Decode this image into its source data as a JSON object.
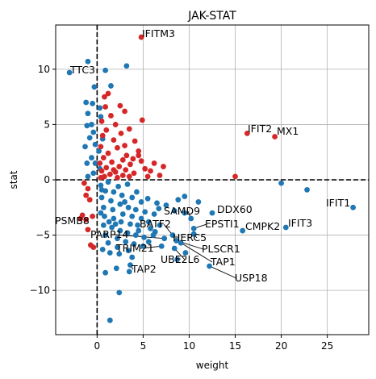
{
  "chart_data": {
    "type": "scatter",
    "title": "JAK-STAT",
    "xlabel": "weight",
    "ylabel": "stat",
    "xlim": [
      -4.5,
      29.5
    ],
    "ylim": [
      -14,
      14
    ],
    "xticks": [
      0,
      5,
      10,
      15,
      20,
      25
    ],
    "yticks": [
      -10,
      -5,
      0,
      5,
      10
    ],
    "grid": true,
    "reference_lines": {
      "x": 0,
      "y": 0,
      "style": "dashed",
      "color": "#000000"
    },
    "colors": {
      "significant": "#d62728",
      "not_significant": "#1f77b4"
    },
    "series": [
      {
        "color": "#d62728",
        "points": [
          [
            4.8,
            12.9
          ],
          [
            4.9,
            5.4
          ],
          [
            16.3,
            4.2
          ],
          [
            19.3,
            3.9
          ],
          [
            15.0,
            0.3
          ],
          [
            0.8,
            7.5
          ],
          [
            1.2,
            7.8
          ],
          [
            0.9,
            6.6
          ],
          [
            2.5,
            6.7
          ],
          [
            3.0,
            6.2
          ],
          [
            1.5,
            5.8
          ],
          [
            0.5,
            5.3
          ],
          [
            2.0,
            5.0
          ],
          [
            3.5,
            4.6
          ],
          [
            1.0,
            4.5
          ],
          [
            2.6,
            4.2
          ],
          [
            0.6,
            4.0
          ],
          [
            4.1,
            3.5
          ],
          [
            1.8,
            3.6
          ],
          [
            3.0,
            3.1
          ],
          [
            0.4,
            3.0
          ],
          [
            2.2,
            2.9
          ],
          [
            4.5,
            2.6
          ],
          [
            1.2,
            2.4
          ],
          [
            3.2,
            2.2
          ],
          [
            0.7,
            2.0
          ],
          [
            2.8,
            1.8
          ],
          [
            4.8,
            1.7
          ],
          [
            1.6,
            1.6
          ],
          [
            0.3,
            1.5
          ],
          [
            3.6,
            1.4
          ],
          [
            2.4,
            1.2
          ],
          [
            1.0,
            1.1
          ],
          [
            5.2,
            1.0
          ],
          [
            3.1,
            0.9
          ],
          [
            0.5,
            0.8
          ],
          [
            2.0,
            0.7
          ],
          [
            4.0,
            0.6
          ],
          [
            1.4,
            0.5
          ],
          [
            2.8,
            0.4
          ],
          [
            0.8,
            0.3
          ],
          [
            3.5,
            0.3
          ],
          [
            5.8,
            0.8
          ],
          [
            6.2,
            1.5
          ],
          [
            7.2,
            1.2
          ],
          [
            6.8,
            0.4
          ],
          [
            4.5,
            2.2
          ],
          [
            2.2,
            0.2
          ],
          [
            1.8,
            0.9
          ],
          [
            0.4,
            0.2
          ],
          [
            5.5,
            0.3
          ],
          [
            3.9,
            1.9
          ],
          [
            -1.4,
            -0.3
          ],
          [
            -1.2,
            -1.4
          ],
          [
            -1.0,
            -0.8
          ],
          [
            -0.8,
            -1.8
          ],
          [
            -1.8,
            -3.5
          ],
          [
            -1.6,
            -3.2
          ],
          [
            -1.2,
            -3.6
          ],
          [
            -0.5,
            -3.3
          ],
          [
            -1.0,
            -4.5
          ],
          [
            -0.7,
            -5.9
          ],
          [
            -0.4,
            -6.1
          ]
        ]
      },
      {
        "color": "#1f77b4",
        "points": [
          [
            -3.0,
            9.7
          ],
          [
            -1.0,
            10.7
          ],
          [
            0.9,
            9.9
          ],
          [
            3.2,
            10.3
          ],
          [
            1.5,
            8.5
          ],
          [
            -0.3,
            8.4
          ],
          [
            -1.2,
            7.0
          ],
          [
            -0.5,
            6.9
          ],
          [
            0.3,
            6.5
          ],
          [
            -1.0,
            6.0
          ],
          [
            0.4,
            5.7
          ],
          [
            -0.6,
            5.0
          ],
          [
            -1.1,
            4.9
          ],
          [
            -0.4,
            4.3
          ],
          [
            -0.8,
            3.8
          ],
          [
            0.6,
            3.7
          ],
          [
            -0.2,
            3.2
          ],
          [
            -1.3,
            3.0
          ],
          [
            0.2,
            2.6
          ],
          [
            -0.6,
            2.0
          ],
          [
            -0.2,
            1.5
          ],
          [
            -1.1,
            1.5
          ],
          [
            0.3,
            1.0
          ],
          [
            -0.4,
            0.6
          ],
          [
            -1.0,
            0.3
          ],
          [
            20.0,
            -0.3
          ],
          [
            22.8,
            -0.9
          ],
          [
            27.8,
            -2.5
          ],
          [
            20.5,
            -4.3
          ],
          [
            15.8,
            -4.6
          ],
          [
            12.5,
            -3.0
          ],
          [
            11.0,
            -2.0
          ],
          [
            12.2,
            -7.8
          ],
          [
            10.5,
            -4.4
          ],
          [
            9.5,
            -3.0
          ],
          [
            10.2,
            -3.5
          ],
          [
            10.5,
            -4.9
          ],
          [
            8.8,
            -1.8
          ],
          [
            9.5,
            -1.5
          ],
          [
            8.4,
            -2.8
          ],
          [
            7.5,
            -2.3
          ],
          [
            6.7,
            -2.6
          ],
          [
            6.2,
            -3.1
          ],
          [
            6.8,
            -4.1
          ],
          [
            7.3,
            -5.3
          ],
          [
            8.2,
            -5.0
          ],
          [
            8.6,
            -5.5
          ],
          [
            9.1,
            -5.7
          ],
          [
            9.6,
            -6.6
          ],
          [
            8.4,
            -6.2
          ],
          [
            7.0,
            -6.0
          ],
          [
            8.7,
            -7.2
          ],
          [
            5.5,
            -1.7
          ],
          [
            4.3,
            -1.1
          ],
          [
            3.3,
            -0.4
          ],
          [
            2.3,
            -0.6
          ],
          [
            1.2,
            -0.2
          ],
          [
            0.4,
            -0.5
          ],
          [
            0.9,
            -1.0
          ],
          [
            1.8,
            -1.1
          ],
          [
            2.7,
            -1.4
          ],
          [
            3.8,
            -1.6
          ],
          [
            4.8,
            -2.0
          ],
          [
            0.5,
            -1.6
          ],
          [
            1.5,
            -1.9
          ],
          [
            2.5,
            -2.2
          ],
          [
            3.4,
            -2.5
          ],
          [
            4.2,
            -2.7
          ],
          [
            5.2,
            -2.9
          ],
          [
            0.7,
            -2.5
          ],
          [
            1.7,
            -2.7
          ],
          [
            2.8,
            -3.1
          ],
          [
            3.8,
            -3.3
          ],
          [
            4.8,
            -3.5
          ],
          [
            5.6,
            -3.8
          ],
          [
            0.8,
            -3.3
          ],
          [
            1.8,
            -3.5
          ],
          [
            2.6,
            -3.8
          ],
          [
            3.6,
            -4.0
          ],
          [
            4.4,
            -4.1
          ],
          [
            5.8,
            -4.4
          ],
          [
            6.3,
            -4.7
          ],
          [
            0.7,
            -4.1
          ],
          [
            1.6,
            -4.3
          ],
          [
            2.5,
            -4.6
          ],
          [
            3.3,
            -4.8
          ],
          [
            4.2,
            -5.0
          ],
          [
            5.1,
            -5.2
          ],
          [
            6.1,
            -5.0
          ],
          [
            0.9,
            -5.0
          ],
          [
            2.2,
            -5.3
          ],
          [
            3.1,
            -5.6
          ],
          [
            4.0,
            -5.8
          ],
          [
            5.0,
            -6.0
          ],
          [
            1.2,
            -5.7
          ],
          [
            2.2,
            -6.1
          ],
          [
            3.4,
            -6.4
          ],
          [
            2.4,
            -6.7
          ],
          [
            1.4,
            -6.6
          ],
          [
            3.8,
            -7.0
          ],
          [
            3.6,
            -7.7
          ],
          [
            2.1,
            -8.0
          ],
          [
            3.5,
            -8.3
          ],
          [
            0.9,
            -8.4
          ],
          [
            2.4,
            -10.2
          ],
          [
            1.4,
            -12.7
          ],
          [
            0.5,
            -0.9
          ],
          [
            0.4,
            -3.0
          ],
          [
            0.6,
            -6.3
          ],
          [
            2.0,
            -4.0
          ],
          [
            3.0,
            -2.0
          ],
          [
            4.5,
            -4.6
          ],
          [
            5.6,
            -5.6
          ],
          [
            6.5,
            -2.1
          ],
          [
            1.3,
            -3.8
          ]
        ]
      }
    ],
    "annotations": [
      {
        "text": "IFITM3",
        "x": 4.8,
        "y": 12.9
      },
      {
        "text": "TTC3",
        "x": -3.0,
        "y": 9.7
      },
      {
        "text": "IFIT2",
        "x": 16.3,
        "y": 4.2
      },
      {
        "text": "MX1",
        "x": 19.3,
        "y": 3.9
      },
      {
        "text": "IFIT1",
        "x": 27.8,
        "y": -2.5
      },
      {
        "text": "IFIT3",
        "x": 20.5,
        "y": -4.3
      },
      {
        "text": "CMPK2",
        "x": 15.8,
        "y": -4.6
      },
      {
        "text": "DDX60",
        "x": 12.5,
        "y": -3.0
      },
      {
        "text": "SAMD9",
        "x": 10.2,
        "y": -3.5
      },
      {
        "text": "EPSTI1",
        "x": 10.5,
        "y": -4.4
      },
      {
        "text": "BATF2",
        "x": 8.2,
        "y": -5.0
      },
      {
        "text": "HERC5",
        "x": 10.5,
        "y": -4.9
      },
      {
        "text": "PLSCR1",
        "x": 8.6,
        "y": -5.5
      },
      {
        "text": "TAP1",
        "x": 9.1,
        "y": -5.7
      },
      {
        "text": "UBE2L6",
        "x": 8.4,
        "y": -6.2
      },
      {
        "text": "USP18",
        "x": 12.2,
        "y": -7.8
      },
      {
        "text": "PSMB8",
        "x": -1.8,
        "y": -3.5
      },
      {
        "text": "PARP14",
        "x": 7.3,
        "y": -5.3
      },
      {
        "text": "TRIM21",
        "x": 7.0,
        "y": -6.0
      },
      {
        "text": "TAP2",
        "x": 3.6,
        "y": -7.7
      }
    ]
  }
}
